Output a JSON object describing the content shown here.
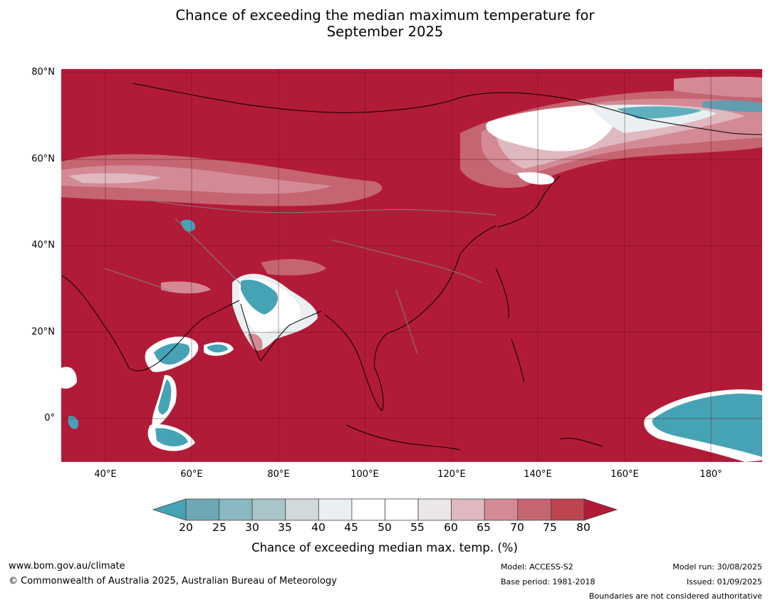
{
  "title": {
    "line1": "Chance of exceeding the median maximum temperature for",
    "line2": "September 2025"
  },
  "map": {
    "latitude_labels": [
      "80°N",
      "60°N",
      "40°N",
      "20°N",
      "0°"
    ],
    "longitude_labels": [
      "40°E",
      "60°E",
      "80°E",
      "100°E",
      "120°E",
      "140°E",
      "160°E",
      "180°"
    ],
    "colors": {
      "high_chance": "#b21b38",
      "low_chance": "#46a3b6",
      "neutral": "#ffffff",
      "coastline": "#000000",
      "boundary": "#808080",
      "grid": "#5a0f1c"
    }
  },
  "colorbar": {
    "ticks": [
      "20",
      "25",
      "30",
      "35",
      "40",
      "45",
      "50",
      "55",
      "60",
      "65",
      "70",
      "75",
      "80"
    ],
    "colors": [
      "#46a3b6",
      "#6fa8b5",
      "#8ab8c3",
      "#aac5ca",
      "#d2d9db",
      "#eaf0f1",
      "#ffffff",
      "#ffffff",
      "#ebe6e7",
      "#e0b8bf",
      "#d38a95",
      "#c66572",
      "#bc4550",
      "#b21b38"
    ],
    "label": "Chance of exceeding median max. temp. (%)"
  },
  "footer": {
    "website": "www.bom.gov.au/climate",
    "copyright": "© Commonwealth of Australia 2025, Australian Bureau of Meteorology",
    "model": "Model: ACCESS-S2",
    "base_period": "Base period: 1981-2018",
    "model_run": "Model run: 30/08/2025",
    "issued": "Issued: 01/09/2025",
    "boundaries_note": "Boundaries are not considered authoritative"
  }
}
